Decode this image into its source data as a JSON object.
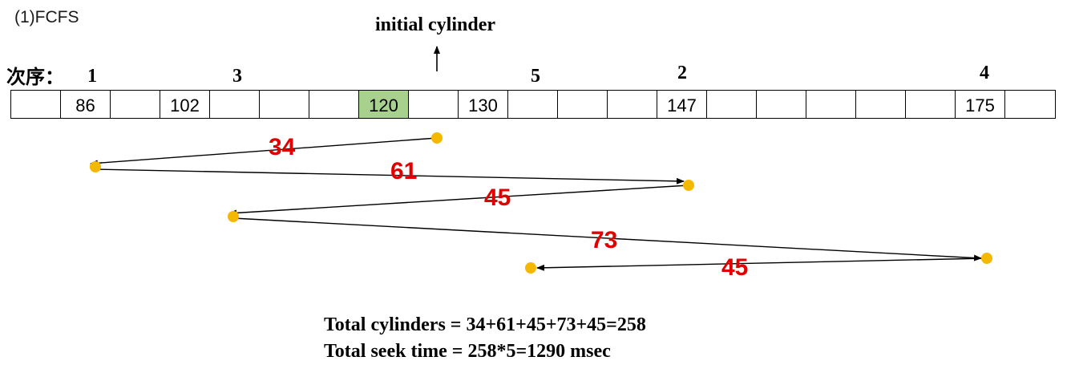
{
  "heading": "(1)FCFS",
  "initial_label": "initial cylinder",
  "order_label": "次序：",
  "cells": [
    "",
    "86",
    "",
    "102",
    "",
    "",
    "",
    "120",
    "",
    "130",
    "",
    "",
    "",
    "147",
    "",
    "",
    "",
    "",
    "",
    "175",
    ""
  ],
  "initial_cylinder": 120,
  "order": [
    {
      "rank": "1",
      "cylinder": 86
    },
    {
      "rank": "3",
      "cylinder": 102
    },
    {
      "rank": "5",
      "cylinder": 130
    },
    {
      "rank": "2",
      "cylinder": 147
    },
    {
      "rank": "4",
      "cylinder": 175
    }
  ],
  "moves": [
    "34",
    "61",
    "45",
    "73",
    "45"
  ],
  "summary": {
    "total_cylinders": "Total cylinders = 34+61+45+73+45=258",
    "total_seek_time": "Total seek time = 258*5=1290 msec"
  },
  "colors": {
    "highlight": "#a9d18e",
    "point": "#f5b800",
    "move_label": "#e00000"
  }
}
